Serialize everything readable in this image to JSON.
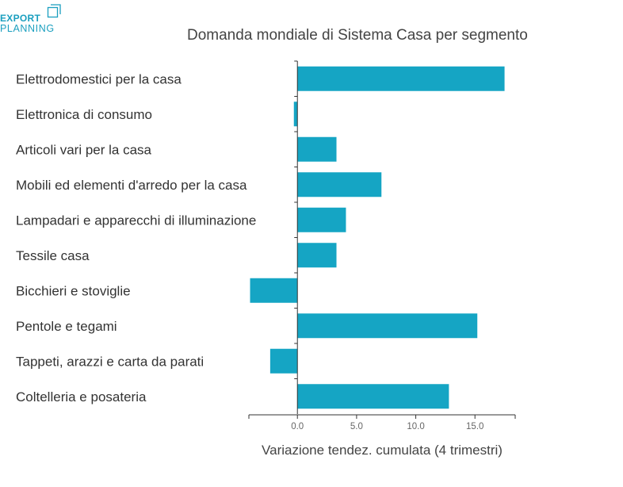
{
  "logo": {
    "top_text": "EXPORT",
    "bottom_text": "PLANNING",
    "mark_icon": "export-planning-logo-icon"
  },
  "chart_data": {
    "type": "bar",
    "orientation": "horizontal",
    "title": "Domanda mondiale di Sistema Casa per segmento",
    "xlabel": "Variazione tendez. cumulata (4 trimestri)",
    "ylabel": "",
    "categories": [
      "Elettrodomestici per la casa",
      "Elettronica di consumo",
      "Articoli vari per la casa",
      "Mobili ed elementi d'arredo per la casa",
      "Lampadari e apparecchi di illuminazione",
      "Tessile casa",
      "Bicchieri e stoviglie",
      "Pentole e tegami",
      "Tappeti, arazzi e carta da parati",
      "Coltelleria e posateria"
    ],
    "values": [
      17.5,
      -0.3,
      3.3,
      7.1,
      4.1,
      3.3,
      -4.0,
      15.2,
      -2.3,
      12.8
    ],
    "xticks": [
      0,
      5,
      10,
      15
    ],
    "xtick_labels": [
      "0.0",
      "5.0",
      "10.0",
      "15.0"
    ],
    "xlim": [
      -4.1,
      18.4
    ],
    "bar_color": "#15a5c4",
    "grid": false,
    "legend": "none"
  }
}
